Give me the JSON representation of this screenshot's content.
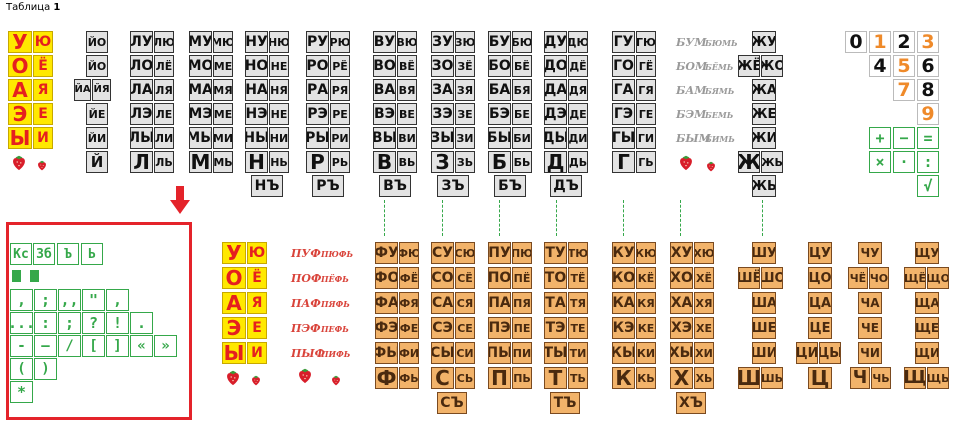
{
  "header": {
    "label": "Таблица",
    "number": "1"
  },
  "colors": {
    "gray_tile": "#e3e3e3",
    "orange_tile": "#f2b36a",
    "yellow_tile": "#ffe800",
    "red_letter": "#e51f1f",
    "green": "#35a84a",
    "highlight_red": "#e4232a"
  },
  "icons": [
    "strawberry-icon",
    "red-down-arrow-icon"
  ],
  "vowels": [
    "У",
    "Ю",
    "О",
    "Ё",
    "А",
    "Я",
    "Э",
    "Е",
    "Ы",
    "И"
  ],
  "top": {
    "soft_vowels": [
      "ЙО",
      "ЙО",
      "ЙА",
      "ЙЯ",
      "ЙЕ",
      "ЙИ",
      "Й"
    ],
    "l": [
      "ЛУ",
      "ЛЮ",
      "ЛО",
      "ЛЁ",
      "ЛА",
      "ЛЯ",
      "ЛЭ",
      "ЛЕ",
      "ЛЫ",
      "ЛИ",
      "Л",
      "ЛЬ"
    ],
    "m": [
      "МУ",
      "МЮ",
      "МО",
      "МЕ",
      "МА",
      "МЯ",
      "МЭ",
      "МЕ",
      "МЫ",
      "МИ",
      "М",
      "МЬ"
    ],
    "n": [
      "НУ",
      "НЮ",
      "НО",
      "НЕ",
      "НА",
      "НЯ",
      "НЭ",
      "НЕ",
      "НЫ",
      "НИ",
      "Н",
      "НЬ",
      "НЪ"
    ],
    "r": [
      "РУ",
      "РЮ",
      "РО",
      "РЁ",
      "РА",
      "РЯ",
      "РЭ",
      "РЕ",
      "РЫ",
      "РИ",
      "Р",
      "РЬ",
      "РЪ"
    ],
    "v": [
      "ВУ",
      "ВЮ",
      "ВО",
      "ВЁ",
      "ВА",
      "ВЯ",
      "ВЭ",
      "ВЕ",
      "ВЫ",
      "ВИ",
      "В",
      "ВЬ",
      "ВЪ"
    ],
    "z": [
      "ЗУ",
      "ЗЮ",
      "ЗО",
      "ЗЁ",
      "ЗА",
      "ЗЯ",
      "ЗЭ",
      "ЗЕ",
      "ЗЫ",
      "ЗИ",
      "З",
      "ЗЬ",
      "ЗЪ"
    ],
    "b": [
      "БУ",
      "БЮ",
      "БО",
      "БЁ",
      "БА",
      "БЯ",
      "БЭ",
      "БЕ",
      "БЫ",
      "БИ",
      "Б",
      "БЬ",
      "БЪ"
    ],
    "d": [
      "ДУ",
      "ДЮ",
      "ДО",
      "ДЁ",
      "ДА",
      "ДЯ",
      "ДЭ",
      "ДЕ",
      "ДЫ",
      "ДИ",
      "Д",
      "ДЬ",
      "ДЪ"
    ],
    "g": [
      "ГУ",
      "ГЮ",
      "ГО",
      "ГЁ",
      "ГА",
      "ГЯ",
      "ГЭ",
      "ГЕ",
      "ГЫ",
      "ГИ",
      "Г",
      "ГЬ"
    ],
    "bum": [
      "БУМ",
      "БЮМЬ",
      "БОМ",
      "БЁМЬ",
      "БАМ",
      "БЯМЬ",
      "БЭМ",
      "БЕМЬ",
      "БЫМ",
      "БИМЬ"
    ],
    "zh": [
      "ЖУ",
      "ЖЁ",
      "ЖО",
      "ЖА",
      "ЖЕ",
      "ЖИ",
      "Ж",
      "ЖЬ",
      "ЖЬ"
    ],
    "digits": [
      "0",
      "1",
      "2",
      "3",
      "4",
      "5",
      "6",
      "7",
      "8",
      "9"
    ],
    "ops": [
      "+",
      "−",
      "=",
      "×",
      "·",
      ":",
      "√"
    ]
  },
  "punct": {
    "row1": [
      "Кс",
      "Зб",
      "Ъ",
      "Ь"
    ],
    "row3": [
      ",",
      ";",
      ",,",
      "\"",
      ","
    ],
    "row4": [
      "...",
      ":",
      ";",
      "?",
      "!",
      "."
    ],
    "row5": [
      "-",
      "—",
      "/",
      "[",
      "]",
      "«",
      "»"
    ],
    "row6": [
      "(",
      ")"
    ],
    "row7": [
      "*"
    ]
  },
  "bottom": {
    "puf": [
      "ПУФ",
      "ПЮФЬ",
      "ПОФ",
      "ПЁФЬ",
      "ПАФ",
      "ПЯФЬ",
      "ПЭФ",
      "ПЕФЬ",
      "ПЫФ",
      "ПИФЬ"
    ],
    "f": [
      "ФУ",
      "ФЮ",
      "ФО",
      "ФЁ",
      "ФА",
      "ФЯ",
      "ФЭ",
      "ФЕ",
      "ФЫ",
      "ФИ",
      "Ф",
      "ФЬ"
    ],
    "s": [
      "СУ",
      "СЮ",
      "СО",
      "СЁ",
      "СА",
      "СЯ",
      "СЭ",
      "СЕ",
      "СЫ",
      "СИ",
      "С",
      "СЬ",
      "СЪ"
    ],
    "p": [
      "ПУ",
      "ПЮ",
      "ПО",
      "ПЁ",
      "ПА",
      "ПЯ",
      "ПЭ",
      "ПЕ",
      "ПЫ",
      "ПИ",
      "П",
      "ПЬ"
    ],
    "t": [
      "ТУ",
      "ТЮ",
      "ТО",
      "ТЁ",
      "ТА",
      "ТЯ",
      "ТЭ",
      "ТЕ",
      "ТЫ",
      "ТИ",
      "Т",
      "ТЬ",
      "ТЪ"
    ],
    "k": [
      "КУ",
      "КЮ",
      "КО",
      "КЁ",
      "КА",
      "КЯ",
      "КЭ",
      "КЕ",
      "КЫ",
      "КИ",
      "К",
      "КЬ"
    ],
    "h": [
      "ХУ",
      "ХЮ",
      "ХО",
      "ХЁ",
      "ХА",
      "ХЯ",
      "ХЭ",
      "ХЕ",
      "ХЫ",
      "ХИ",
      "Х",
      "ХЬ",
      "ХЪ"
    ],
    "sh": [
      "ШУ",
      "ШЁ",
      "ШО",
      "ША",
      "ШЕ",
      "ШИ",
      "Ш",
      "ШЬ"
    ],
    "ts": [
      "ЦУ",
      "ЦО",
      "ЦА",
      "ЦЕ",
      "ЦИ",
      "ЦЫ",
      "Ц"
    ],
    "ch": [
      "ЧУ",
      "ЧЁ",
      "ЧО",
      "ЧА",
      "ЧЕ",
      "ЧИ",
      "Ч",
      "ЧЬ"
    ],
    "sch": [
      "ЩУ",
      "ЩЁ",
      "ЩО",
      "ЩА",
      "ЩЕ",
      "ЩИ",
      "Щ",
      "ЩЬ"
    ]
  }
}
